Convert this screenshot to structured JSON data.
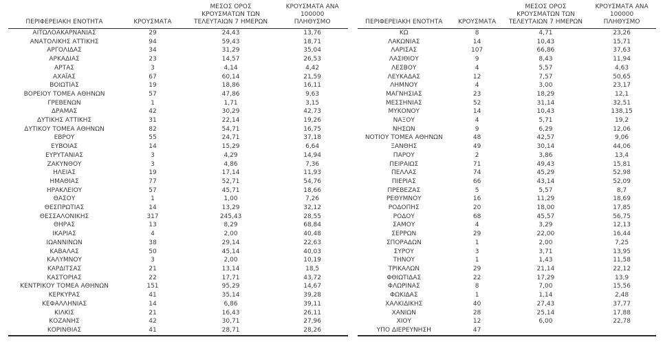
{
  "page": {
    "background_color": "#ffffff",
    "text_color": "#3a3a3a",
    "rule_color": "#2b2b2b",
    "description": "Greek regional units COVID-19 case statistics table, two side-by-side panels"
  },
  "tables": [
    {
      "id": "regions-left",
      "headers": {
        "region": "ΠΕΡΙΦΕΡΕΙΑΚΗ ΕΝΟΤΗΤΑ",
        "cases": "ΚΡΟΥΣΜΑΤΑ",
        "avg7": "ΜΕΣΟΣ ΟΡΟΣ\nΚΡΟΥΣΜΑΤΩΝ ΤΩΝ\nΤΕΛΕΥΤΑΙΩΝ 7 ΗΜΕΡΩΝ",
        "per100k": "ΚΡΟΥΣΜΑΤΑ ΑΝΑ 100000\nΠΛΗΘΥΣΜΟ"
      },
      "rows": [
        [
          "ΑΙΤΩΛΟΑΚΑΡΝΑΝΙΑΣ",
          "29",
          "24,43",
          "13,76"
        ],
        [
          "ΑΝΑΤΟΛΙΚΗΣ ΑΤΤΙΚΗΣ",
          "94",
          "59,43",
          "18,71"
        ],
        [
          "ΑΡΓΟΛΙΔΑΣ",
          "34",
          "31,29",
          "35,04"
        ],
        [
          "ΑΡΚΑΔΙΑΣ",
          "23",
          "14,57",
          "26,53"
        ],
        [
          "ΑΡΤΑΣ",
          "3",
          "4,14",
          "4,42"
        ],
        [
          "ΑΧΑΪΑΣ",
          "67",
          "60,14",
          "21,59"
        ],
        [
          "ΒΟΙΩΤΙΑΣ",
          "19",
          "18,86",
          "16,11"
        ],
        [
          "ΒΟΡΕΙΟΥ ΤΟΜΕΑ ΑΘΗΝΩΝ",
          "57",
          "47,86",
          "9,63"
        ],
        [
          "ΓΡΕΒΕΝΩΝ",
          "1",
          "1,71",
          "3,15"
        ],
        [
          "ΔΡΑΜΑΣ",
          "42",
          "30,29",
          "42,73"
        ],
        [
          "ΔΥΤΙΚΗΣ ΑΤΤΙΚΗΣ",
          "31",
          "22,14",
          "19,26"
        ],
        [
          "ΔΥΤΙΚΟΥ ΤΟΜΕΑ ΑΘΗΝΩΝ",
          "82",
          "54,71",
          "16,75"
        ],
        [
          "ΕΒΡΟΥ",
          "55",
          "24,71",
          "37,18"
        ],
        [
          "ΕΥΒΟΙΑΣ",
          "14",
          "15,29",
          "6,64"
        ],
        [
          "ΕΥΡΥΤΑΝΙΑΣ",
          "3",
          "4,29",
          "14,94"
        ],
        [
          "ΖΑΚΥΝΘΟΥ",
          "3",
          "4,86",
          "7,36"
        ],
        [
          "ΗΛΕΙΑΣ",
          "19",
          "17,14",
          "11,93"
        ],
        [
          "ΗΜΑΘΙΑΣ",
          "77",
          "52,71",
          "54,76"
        ],
        [
          "ΗΡΑΚΛΕΙΟΥ",
          "57",
          "45,71",
          "18,66"
        ],
        [
          "ΘΑΣΟΥ",
          "1",
          "1,00",
          "7,26"
        ],
        [
          "ΘΕΣΠΡΩΤΙΑΣ",
          "14",
          "13,29",
          "32,12"
        ],
        [
          "ΘΕΣΣΑΛΟΝΙΚΗΣ",
          "317",
          "245,43",
          "28,55"
        ],
        [
          "ΘΗΡΑΣ",
          "13",
          "8,29",
          "68,84"
        ],
        [
          "ΙΚΑΡΙΑΣ",
          "4",
          "2,00",
          "40,48"
        ],
        [
          "ΙΩΑΝΝΙΝΩΝ",
          "38",
          "29,14",
          "22,63"
        ],
        [
          "ΚΑΒΑΛΑΣ",
          "50",
          "45,14",
          "40,03"
        ],
        [
          "ΚΑΛΥΜΝΟΥ",
          "3",
          "2,00",
          "10,19"
        ],
        [
          "ΚΑΡΔΙΤΣΑΣ",
          "21",
          "13,14",
          "18,5"
        ],
        [
          "ΚΑΣΤΟΡΙΑΣ",
          "22",
          "17,71",
          "43,72"
        ],
        [
          "ΚΕΝΤΡΙΚΟΥ ΤΟΜΕΑ ΑΘΗΝΩΝ",
          "151",
          "95,29",
          "14,67"
        ],
        [
          "ΚΕΡΚΥΡΑΣ",
          "41",
          "35,14",
          "39,28"
        ],
        [
          "ΚΕΦΑΛΛΗΝΙΑΣ",
          "14",
          "6,86",
          "39,11"
        ],
        [
          "ΚΙΛΚΙΣ",
          "21",
          "16,43",
          "26,11"
        ],
        [
          "ΚΟΖΑΝΗΣ",
          "42",
          "30,71",
          "27,96"
        ],
        [
          "ΚΟΡΙΝΘΙΑΣ",
          "41",
          "28,71",
          "28,26"
        ]
      ]
    },
    {
      "id": "regions-right",
      "headers": {
        "region": "ΠΕΡΙΦΕΡΕΙΑΚΗ ΕΝΟΤΗΤΑ",
        "cases": "ΚΡΟΥΣΜΑΤΑ",
        "avg7": "ΜΕΣΟΣ ΟΡΟΣ\nΚΡΟΥΣΜΑΤΩΝ ΤΩΝ\nΤΕΛΕΥΤΑΙΩΝ 7 ΗΜΕΡΩΝ",
        "per100k": "ΚΡΟΥΣΜΑΤΑ ΑΝΑ 100000\nΠΛΗΘΥΣΜΟ"
      },
      "rows": [
        [
          "ΚΩ",
          "8",
          "4,71",
          "23,26"
        ],
        [
          "ΛΑΚΩΝΙΑΣ",
          "14",
          "10,43",
          "15,71"
        ],
        [
          "ΛΑΡΙΣΑΣ",
          "107",
          "66,86",
          "37,63"
        ],
        [
          "ΛΑΣΙΘΙΟΥ",
          "9",
          "8,43",
          "11,94"
        ],
        [
          "ΛΕΣΒΟΥ",
          "4",
          "5,57",
          "4,63"
        ],
        [
          "ΛΕΥΚΑΔΑΣ",
          "12",
          "7,57",
          "50,65"
        ],
        [
          "ΛΗΜΝΟΥ",
          "4",
          "3,00",
          "23,17"
        ],
        [
          "ΜΑΓΝΗΣΙΑΣ",
          "23",
          "18,29",
          "12,1"
        ],
        [
          "ΜΕΣΣΗΝΙΑΣ",
          "52",
          "31,14",
          "32,51"
        ],
        [
          "ΜΥΚΟΝΟΥ",
          "14",
          "10,43",
          "138,15"
        ],
        [
          "ΝΑΞΟΥ",
          "4",
          "5,71",
          "19,2"
        ],
        [
          "ΝΗΣΩΝ",
          "9",
          "6,29",
          "12,06"
        ],
        [
          "ΝΟΤΙΟΥ ΤΟΜΕΑ ΑΘΗΝΩΝ",
          "48",
          "42,57",
          "9,06"
        ],
        [
          "ΞΑΝΘΗΣ",
          "49",
          "30,14",
          "44,06"
        ],
        [
          "ΠΑΡΟΥ",
          "2",
          "3,86",
          "13,4"
        ],
        [
          "ΠΕΙΡΑΙΩΣ",
          "71",
          "49,43",
          "15,81"
        ],
        [
          "ΠΕΛΛΑΣ",
          "74",
          "45,29",
          "52,98"
        ],
        [
          "ΠΙΕΡΙΑΣ",
          "66",
          "43,14",
          "52,09"
        ],
        [
          "ΠΡΕΒΕΖΑΣ",
          "5",
          "5,57",
          "8,7"
        ],
        [
          "ΡΕΘΥΜΝΟΥ",
          "16",
          "11,29",
          "18,69"
        ],
        [
          "ΡΟΔΟΠΗΣ",
          "20",
          "18,00",
          "17,85"
        ],
        [
          "ΡΟΔΟΥ",
          "68",
          "45,57",
          "56,75"
        ],
        [
          "ΣΑΜΟΥ",
          "4",
          "3,29",
          "12,13"
        ],
        [
          "ΣΕΡΡΩΝ",
          "29",
          "22,00",
          "16,44"
        ],
        [
          "ΣΠΟΡΑΔΩΝ",
          "1",
          "2,00",
          "7,25"
        ],
        [
          "ΣΥΡΟΥ",
          "3",
          "3,71",
          "13,95"
        ],
        [
          "ΤΗΝΟΥ",
          "1",
          "1,43",
          "11,58"
        ],
        [
          "ΤΡΙΚΑΛΩΝ",
          "29",
          "21,14",
          "22,12"
        ],
        [
          "ΦΘΙΩΤΙΔΑΣ",
          "22",
          "17,29",
          "13,9"
        ],
        [
          "ΦΛΩΡΙΝΑΣ",
          "8",
          "7,00",
          "15,56"
        ],
        [
          "ΦΩΚΙΔΑΣ",
          "1",
          "1,14",
          "2,48"
        ],
        [
          "ΧΑΛΚΙΔΙΚΗΣ",
          "40",
          "27,43",
          "37,77"
        ],
        [
          "ΧΑΝΙΩΝ",
          "28",
          "25,14",
          "17,88"
        ],
        [
          "ΧΙΟΥ",
          "12",
          "6,00",
          "22,78"
        ],
        [
          "ΥΠΟ ΔΙΕΡΕΥΝΗΣΗ",
          "47",
          "",
          ""
        ]
      ]
    }
  ]
}
